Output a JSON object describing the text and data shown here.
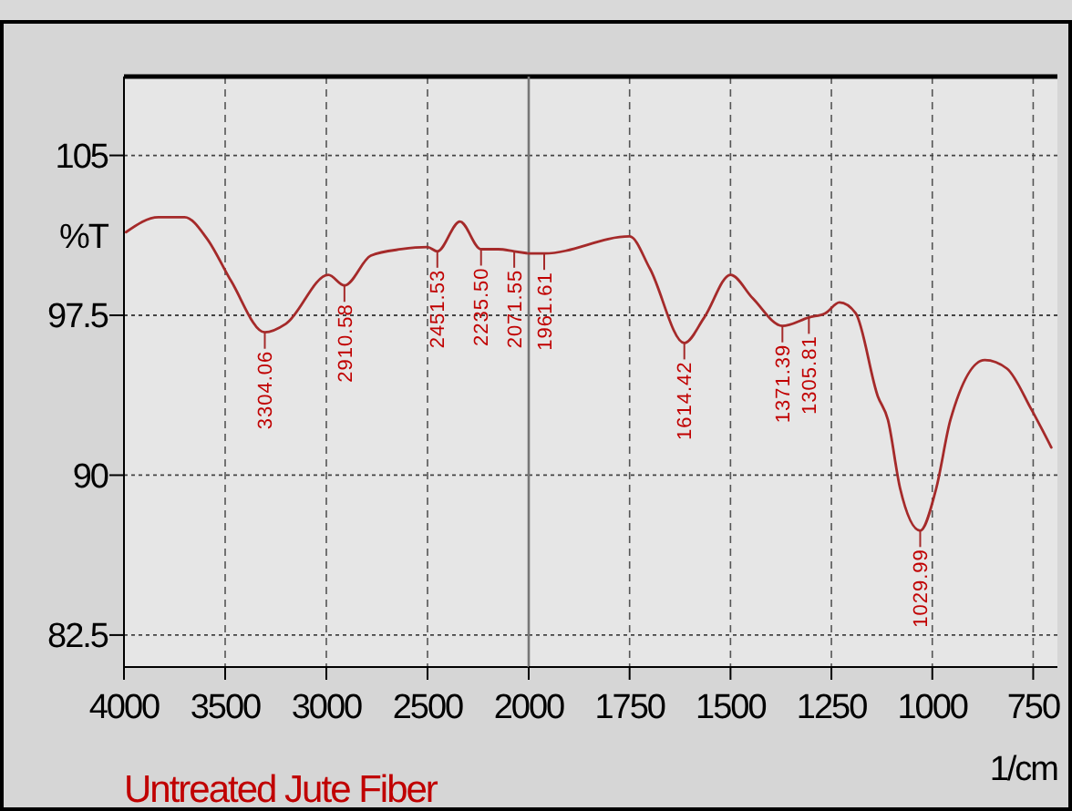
{
  "chart_data": [
    {
      "type": "line",
      "title": "Untreated Jute Fiber",
      "ylabel": "%T",
      "x": [
        3990,
        3830,
        3700,
        3590,
        3470,
        3304.06,
        3200,
        2990,
        2910.58,
        2780,
        2630,
        2500,
        2451.53,
        2340,
        2235.5,
        2150,
        2071.55,
        2000
      ],
      "series": [
        {
          "color": "#a52a2a",
          "values": [
            101.4,
            102.1,
            102.1,
            101.1,
            99.1,
            96.7,
            97.1,
            99.4,
            98.9,
            100.3,
            100.6,
            100.7,
            100.5,
            101.9,
            100.6,
            100.6,
            100.5,
            100.4
          ]
        }
      ],
      "annotations": [
        {
          "text": "3304.06",
          "x": 3304.06,
          "y": 96.7
        },
        {
          "text": "2910.58",
          "x": 2910.58,
          "y": 98.9
        },
        {
          "text": "2451.53",
          "x": 2451.53,
          "y": 100.5
        },
        {
          "text": "2235.50",
          "x": 2235.5,
          "y": 100.6
        },
        {
          "text": "2071.55",
          "x": 2071.55,
          "y": 100.5
        }
      ],
      "xlim": [
        4000,
        2000
      ],
      "xticks": [
        4000,
        3500,
        3000,
        2500,
        {
          "value": 2000,
          "label": null
        }
      ],
      "ylim": [
        81,
        108.7
      ],
      "yticks": [
        105,
        97.5,
        90,
        82.5
      ],
      "grid": true,
      "marker": "none",
      "line_style": "solid"
    },
    {
      "type": "line",
      "xlabel": "1/cm",
      "x": [
        2000,
        1961.61,
        1750,
        1700,
        1614.42,
        1565,
        1500,
        1445,
        1371.39,
        1305.81,
        1265,
        1230,
        1190,
        1135,
        1110,
        1080,
        1029.99,
        990,
        955,
        870,
        815,
        755,
        705
      ],
      "series": [
        {
          "color": "#a52a2a",
          "values": [
            100.4,
            100.4,
            101.2,
            99.7,
            96.2,
            97.4,
            99.4,
            98.3,
            97.0,
            97.4,
            97.6,
            98.1,
            97.6,
            93.7,
            92.6,
            89.4,
            87.4,
            89.4,
            92.6,
            95.4,
            95.0,
            93.1,
            91.3
          ]
        }
      ],
      "annotations": [
        {
          "text": "1961.61",
          "x": 1961.61,
          "y": 100.4
        },
        {
          "text": "1614.42",
          "x": 1614.42,
          "y": 96.2
        },
        {
          "text": "1371.39",
          "x": 1371.39,
          "y": 97.0
        },
        {
          "text": "1305.81",
          "x": 1305.81,
          "y": 97.4
        },
        {
          "text": "1029.99",
          "x": 1029.99,
          "y": 87.4
        }
      ],
      "xlim": [
        2000,
        690
      ],
      "xticks": [
        2000,
        1750,
        1500,
        1250,
        1000,
        750
      ],
      "ylim": [
        81,
        108.7
      ],
      "yticks": [
        105,
        97.5,
        90,
        82.5
      ],
      "tick_labels": "x",
      "grid": true,
      "marker": "none",
      "line_style": "solid"
    }
  ]
}
